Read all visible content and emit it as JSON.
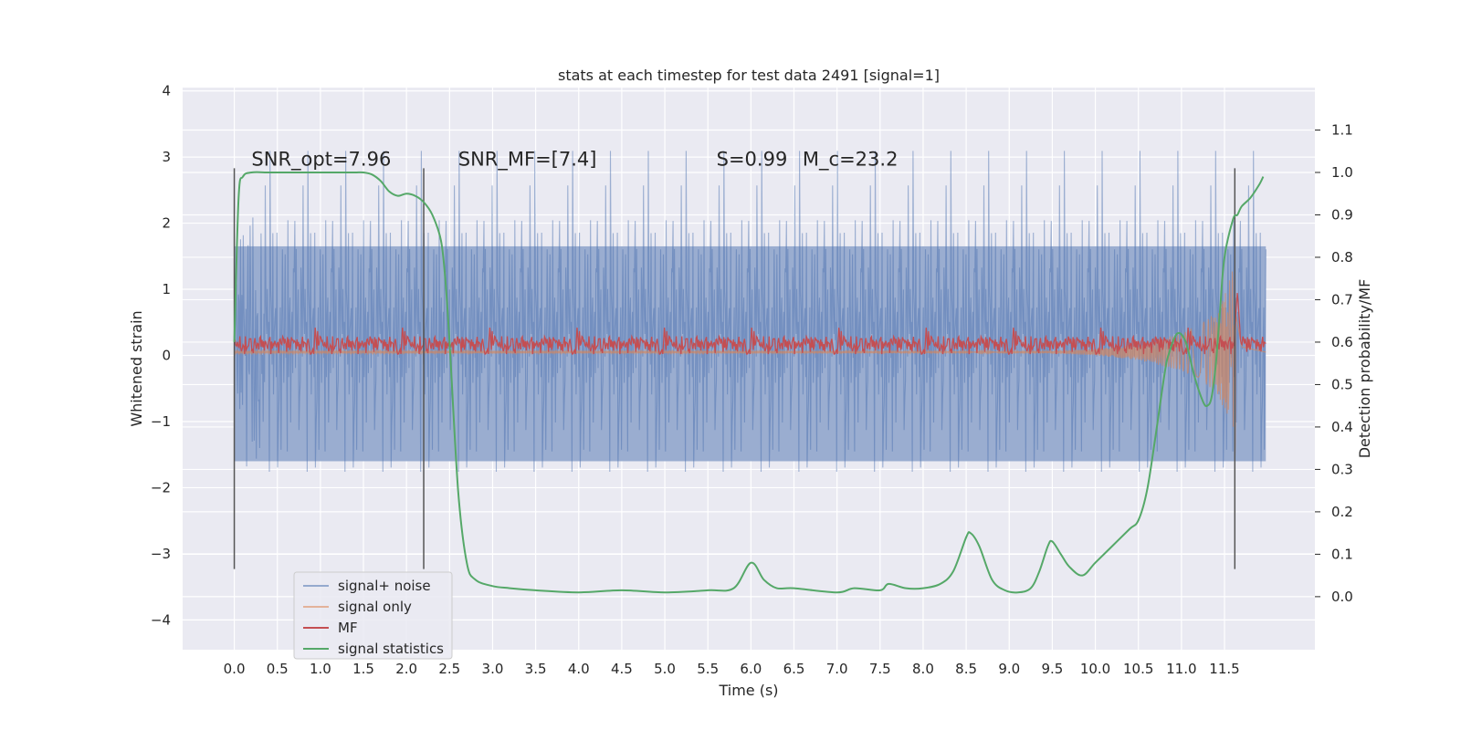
{
  "chart_data": {
    "type": "line",
    "title": "stats at each timestep for test data 2491 [signal=1]",
    "xlabel": "Time (s)",
    "ylabel": "Whitened strain",
    "y2label": "Detection probability/MF",
    "xlim": [
      -0.6,
      12.55
    ],
    "ylim": [
      -4.45,
      4.05
    ],
    "y2lim": [
      -0.125,
      1.2
    ],
    "xticks": [
      0.0,
      0.5,
      1.0,
      1.5,
      2.0,
      2.5,
      3.0,
      3.5,
      4.0,
      4.5,
      5.0,
      5.5,
      6.0,
      6.5,
      7.0,
      7.5,
      8.0,
      8.5,
      9.0,
      9.5,
      10.0,
      10.5,
      11.0,
      11.5
    ],
    "xtick_labels": [
      "0.0",
      "0.5",
      "1.0",
      "1.5",
      "2.0",
      "2.5",
      "3.0",
      "3.5",
      "4.0",
      "4.5",
      "5.0",
      "5.5",
      "6.0",
      "6.5",
      "7.0",
      "7.5",
      "8.0",
      "8.5",
      "9.0",
      "9.5",
      "10.0",
      "10.5",
      "11.0",
      "11.5"
    ],
    "yticks": [
      -4,
      -3,
      -2,
      -1,
      0,
      1,
      2,
      3,
      4
    ],
    "ytick_labels": [
      "−4",
      "−3",
      "−2",
      "−1",
      "0",
      "1",
      "2",
      "3",
      "4"
    ],
    "y2ticks": [
      0.0,
      0.1,
      0.2,
      0.3,
      0.4,
      0.5,
      0.6,
      0.7,
      0.8,
      0.9,
      1.0,
      1.1
    ],
    "y2tick_labels": [
      "0.0",
      "0.1",
      "0.2",
      "0.3",
      "0.4",
      "0.5",
      "0.6",
      "0.7",
      "0.8",
      "0.9",
      "1.0",
      "1.1"
    ],
    "grid": true,
    "legend_position": "lower-left",
    "annotations": [
      {
        "id": "snr-opt",
        "text": "SNR_opt=7.96",
        "x": 0.2,
        "y": 2.98
      },
      {
        "id": "snr-mf",
        "text": "SNR_MF=[7.4]",
        "x": 2.6,
        "y": 2.98
      },
      {
        "id": "s-val",
        "text": "S=0.99",
        "x": 5.6,
        "y": 2.98
      },
      {
        "id": "mc-val",
        "text": "M_c=23.2",
        "x": 6.6,
        "y": 2.98
      }
    ],
    "vlines": [
      {
        "x": 0.0,
        "y_from": -3.23,
        "y_to": 2.83
      },
      {
        "x": 2.2,
        "y_from": -3.23,
        "y_to": 2.83
      },
      {
        "x": 11.62,
        "y_from": -3.23,
        "y_to": 2.83
      }
    ],
    "series": [
      {
        "name": "signal+ noise",
        "color": "#4c72b0",
        "axis": "left",
        "x_range": [
          0.0,
          11.98
        ],
        "envelope": {
          "x": [
            0.0,
            1.0,
            2.0,
            3.0,
            4.0,
            5.0,
            6.0,
            7.0,
            8.0,
            9.0,
            10.0,
            11.0,
            11.98
          ],
          "lower_typical": -1.6,
          "upper_typical": 1.65,
          "peak_max": 3.65,
          "peak_min": -4.1
        }
      },
      {
        "name": "signal only",
        "color": "#dd8452",
        "axis": "left",
        "x": [
          0.0,
          9.5,
          10.0,
          10.5,
          11.0,
          11.2,
          11.4,
          11.55,
          11.62,
          11.7,
          11.98
        ],
        "amplitude": [
          0.02,
          0.02,
          0.05,
          0.12,
          0.28,
          0.4,
          0.6,
          1.0,
          1.65,
          0.2,
          0.0
        ]
      },
      {
        "name": "MF",
        "color": "#c44e52",
        "axis": "left",
        "x_range": [
          0.0,
          11.98
        ],
        "baseline": 0.15,
        "noise_range": [
          0.02,
          0.42
        ],
        "peak": {
          "x": 11.65,
          "y": 0.98
        }
      },
      {
        "name": "signal statistics",
        "color": "#55a868",
        "axis": "right",
        "x": [
          0.0,
          0.05,
          0.1,
          0.2,
          0.4,
          0.6,
          1.0,
          1.2,
          1.4,
          1.5,
          1.6,
          1.7,
          1.8,
          1.9,
          2.0,
          2.1,
          2.2,
          2.3,
          2.4,
          2.45,
          2.5,
          2.6,
          2.7,
          2.8,
          3.0,
          3.2,
          3.5,
          4.0,
          4.5,
          5.0,
          5.5,
          5.8,
          6.0,
          6.15,
          6.3,
          6.5,
          7.0,
          7.2,
          7.5,
          7.6,
          7.8,
          8.0,
          8.2,
          8.35,
          8.5,
          8.55,
          8.65,
          8.8,
          8.95,
          9.1,
          9.25,
          9.35,
          9.45,
          9.5,
          9.6,
          9.7,
          9.85,
          10.0,
          10.2,
          10.4,
          10.5,
          10.6,
          10.7,
          10.8,
          10.85,
          10.95,
          11.05,
          11.15,
          11.25,
          11.3,
          11.35,
          11.4,
          11.45,
          11.5,
          11.6,
          11.65,
          11.7,
          11.8,
          11.9,
          11.95
        ],
        "y": [
          0.6,
          0.94,
          0.99,
          1.0,
          1.0,
          1.0,
          1.0,
          1.0,
          1.0,
          1.0,
          0.995,
          0.98,
          0.955,
          0.945,
          0.95,
          0.945,
          0.93,
          0.9,
          0.84,
          0.75,
          0.6,
          0.25,
          0.08,
          0.04,
          0.025,
          0.02,
          0.015,
          0.01,
          0.015,
          0.01,
          0.015,
          0.02,
          0.08,
          0.04,
          0.02,
          0.02,
          0.01,
          0.02,
          0.015,
          0.03,
          0.02,
          0.02,
          0.03,
          0.06,
          0.14,
          0.15,
          0.12,
          0.04,
          0.015,
          0.01,
          0.02,
          0.06,
          0.12,
          0.13,
          0.1,
          0.07,
          0.05,
          0.08,
          0.12,
          0.16,
          0.18,
          0.25,
          0.38,
          0.52,
          0.57,
          0.62,
          0.6,
          0.52,
          0.46,
          0.45,
          0.47,
          0.55,
          0.68,
          0.8,
          0.89,
          0.9,
          0.92,
          0.94,
          0.97,
          0.99
        ]
      }
    ]
  }
}
